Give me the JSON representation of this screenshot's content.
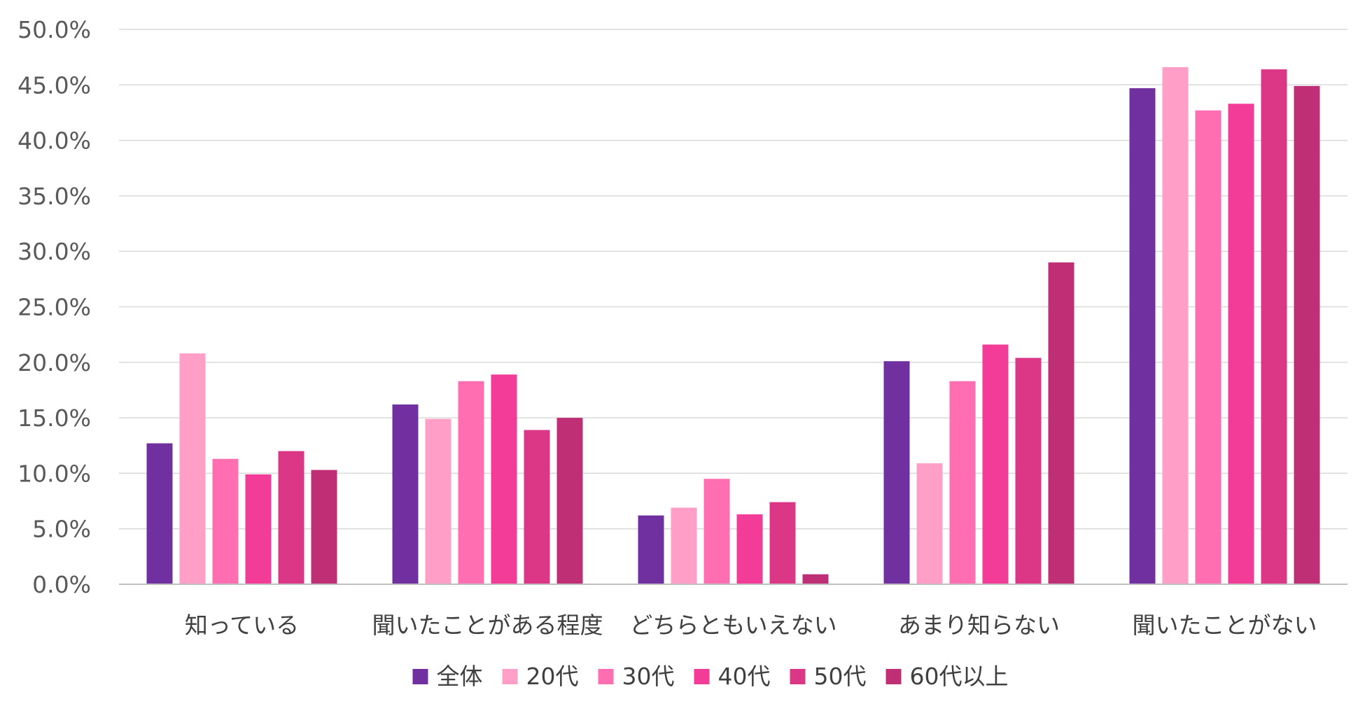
{
  "chart_data": {
    "type": "bar",
    "categories": [
      "知っている",
      "聞いたことがある程度",
      "どちらともいえない",
      "あまり知らない",
      "聞いたことがない"
    ],
    "series": [
      {
        "name": "全体",
        "color": "#7030a0",
        "values": [
          12.7,
          16.2,
          6.2,
          20.1,
          44.7
        ]
      },
      {
        "name": "20代",
        "color": "#ff9fc7",
        "values": [
          20.8,
          14.9,
          6.9,
          10.9,
          46.6
        ]
      },
      {
        "name": "30代",
        "color": "#ff6eb0",
        "values": [
          11.3,
          18.3,
          9.5,
          18.3,
          42.7
        ]
      },
      {
        "name": "40代",
        "color": "#f23c98",
        "values": [
          9.9,
          18.9,
          6.3,
          21.6,
          43.3
        ]
      },
      {
        "name": "50代",
        "color": "#db3786",
        "values": [
          12.0,
          13.9,
          7.4,
          20.4,
          46.4
        ]
      },
      {
        "name": "60代以上",
        "color": "#bf2f76",
        "values": [
          10.3,
          15.0,
          0.9,
          29.0,
          44.9
        ]
      }
    ],
    "yticks": [
      "0.0%",
      "5.0%",
      "10.0%",
      "15.0%",
      "20.0%",
      "25.0%",
      "30.0%",
      "35.0%",
      "40.0%",
      "45.0%",
      "50.0%"
    ],
    "ylim": [
      0,
      50
    ],
    "title": "",
    "xlabel": "",
    "ylabel": "",
    "grid": true,
    "legend_position": "bottom"
  }
}
